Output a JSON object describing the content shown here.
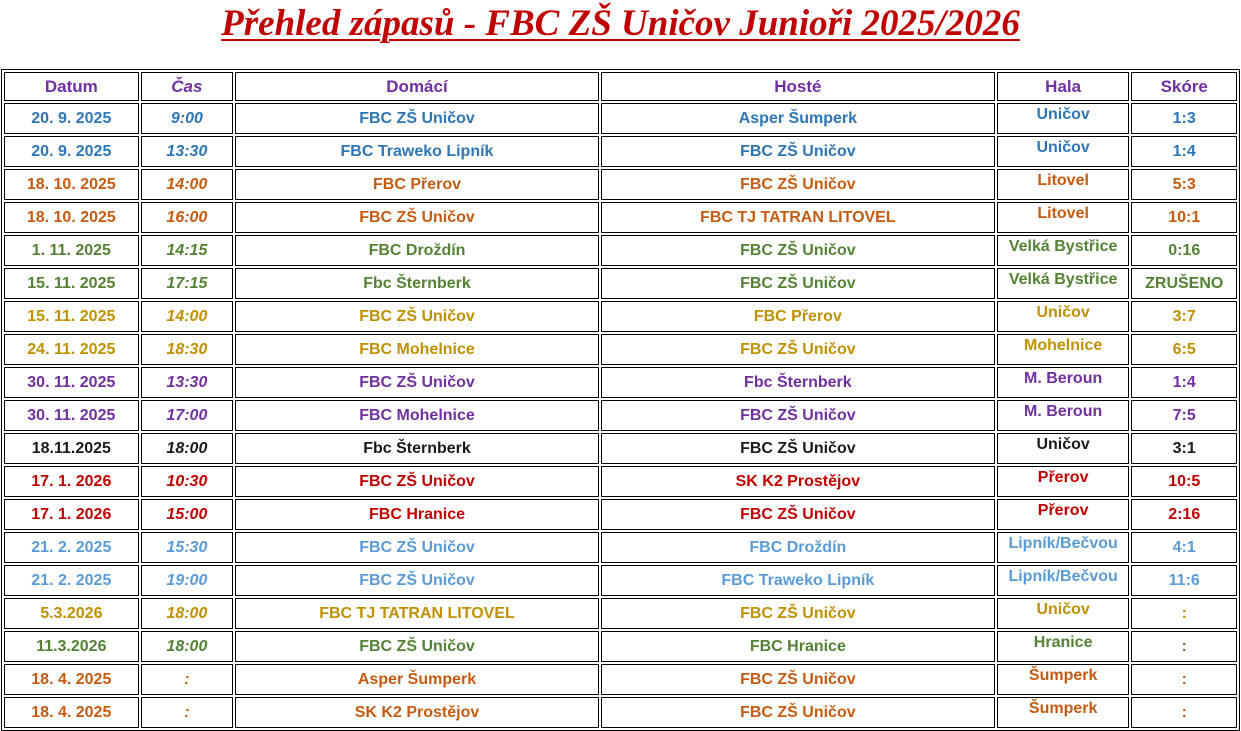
{
  "title": "Přehled zápasů - FBC ZŠ Uničov Junioři 2025/2026",
  "headers": [
    "Datum",
    "Čas",
    "Domácí",
    "Hosté",
    "Hala",
    "Skóre"
  ],
  "rows": [
    {
      "date": "20. 9. 2025",
      "time": "9:00",
      "home": "FBC ZŠ Uničov",
      "away": "Asper Šumperk",
      "hall": "Uničov",
      "score": "1:3",
      "color": "#2e75b6"
    },
    {
      "date": "20. 9. 2025",
      "time": "13:30",
      "home": "FBC Traweko Lipník",
      "away": "FBC ZŠ Uničov",
      "hall": "Uničov",
      "score": "1:4",
      "color": "#2e75b6"
    },
    {
      "date": "18. 10. 2025",
      "time": "14:00",
      "home": "FBC Přerov",
      "away": "FBC ZŠ Uničov",
      "hall": "Litovel",
      "score": "5:3",
      "color": "#c55a11"
    },
    {
      "date": "18. 10. 2025",
      "time": "16:00",
      "home": "FBC ZŠ Uničov",
      "away": "FBC TJ TATRAN LITOVEL",
      "hall": "Litovel",
      "score": "10:1",
      "color": "#c55a11"
    },
    {
      "date": "1. 11. 2025",
      "time": "14:15",
      "home": "FBC Droždín",
      "away": "FBC ZŠ Uničov",
      "hall": "Velká Bystřice",
      "score": "0:16",
      "color": "#548235"
    },
    {
      "date": "15. 11. 2025",
      "time": "17:15",
      "home": "Fbc Šternberk",
      "away": "FBC ZŠ Uničov",
      "hall": "Velká Bystřice",
      "score": "ZRUŠENO",
      "color": "#548235"
    },
    {
      "date": "15. 11. 2025",
      "time": "14:00",
      "home": "FBC ZŠ Uničov",
      "away": "FBC Přerov",
      "hall": "Uničov",
      "score": "3:7",
      "color": "#bf9000"
    },
    {
      "date": "24. 11. 2025",
      "time": "18:30",
      "home": "FBC Mohelnice",
      "away": "FBC ZŠ Uničov",
      "hall": "Mohelnice",
      "score": "6:5",
      "color": "#bf9000"
    },
    {
      "date": "30. 11. 2025",
      "time": "13:30",
      "home": "FBC ZŠ Uničov",
      "away": "Fbc Šternberk",
      "hall": "M. Beroun",
      "score": "1:4",
      "color": "#7030a0"
    },
    {
      "date": "30. 11. 2025",
      "time": "17:00",
      "home": "FBC Mohelnice",
      "away": "FBC ZŠ Uničov",
      "hall": "M. Beroun",
      "score": "7:5",
      "color": "#7030a0"
    },
    {
      "date": "18.11.2025",
      "time": "18:00",
      "home": "Fbc Šternberk",
      "away": "FBC ZŠ Uničov",
      "hall": "Uničov",
      "score": "3:1",
      "color": "#1a1a1a"
    },
    {
      "date": "17. 1. 2026",
      "time": "10:30",
      "home": "FBC ZŠ Uničov",
      "away": "SK K2 Prostějov",
      "hall": "Přerov",
      "score": "10:5",
      "color": "#c00000"
    },
    {
      "date": "17. 1. 2026",
      "time": "15:00",
      "home": "FBC Hranice",
      "away": "FBC ZŠ Uničov",
      "hall": "Přerov",
      "score": "2:16",
      "color": "#c00000"
    },
    {
      "date": "21. 2. 2025",
      "time": "15:30",
      "home": "FBC ZŠ Uničov",
      "away": "FBC Droždín",
      "hall": "Lipník/Bečvou",
      "score": "4:1",
      "color": "#5b9bd5"
    },
    {
      "date": "21. 2. 2025",
      "time": "19:00",
      "home": "FBC ZŠ Uničov",
      "away": "FBC Traweko Lipník",
      "hall": "Lipník/Bečvou",
      "score": "11:6",
      "color": "#5b9bd5"
    },
    {
      "date": "5.3.2026",
      "time": "18:00",
      "home": "FBC TJ TATRAN LITOVEL",
      "away": "FBC ZŠ Uničov",
      "hall": "Uničov",
      "score": ":",
      "color": "#bf9000"
    },
    {
      "date": "11.3.2026",
      "time": "18:00",
      "home": "FBC ZŠ Uničov",
      "away": "FBC Hranice",
      "hall": "Hranice",
      "score": ":",
      "color": "#548235"
    },
    {
      "date": "18. 4. 2025",
      "time": ":",
      "home": "Asper Šumperk",
      "away": "FBC ZŠ Uničov",
      "hall": "Šumperk",
      "score": ":",
      "color": "#c55a11"
    },
    {
      "date": "18. 4. 2025",
      "time": ":",
      "home": "SK K2 Prostějov",
      "away": "FBC ZŠ Uničov",
      "hall": "Šumperk",
      "score": ":",
      "color": "#c55a11"
    }
  ]
}
